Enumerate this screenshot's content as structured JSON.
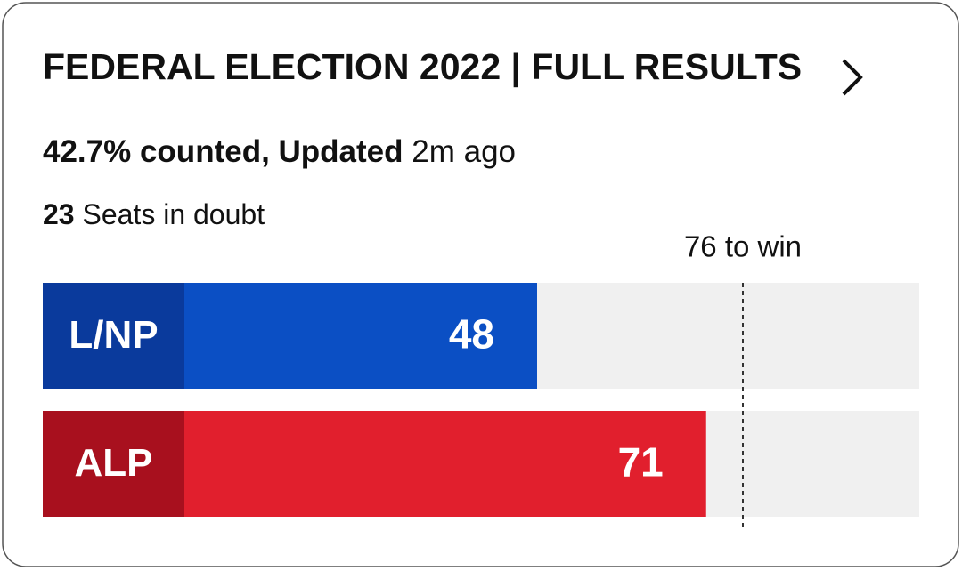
{
  "chart_data": {
    "type": "bar",
    "title": "FEDERAL ELECTION 2022 | FULL RESULTS",
    "counted_text": "42.7% counted, Updated",
    "updated_text": "2m ago",
    "seats_in_doubt": 23,
    "seats_in_doubt_label": "Seats in doubt",
    "threshold": {
      "value": 76,
      "label": "76 to win"
    },
    "categories": [
      "L/NP",
      "ALP"
    ],
    "values": [
      48,
      71
    ],
    "colors": [
      "#0b4fc4",
      "#e11f2d"
    ],
    "label_colors": [
      "#0a3a9c",
      "#a8101e"
    ],
    "xlim": [
      0,
      100
    ]
  }
}
